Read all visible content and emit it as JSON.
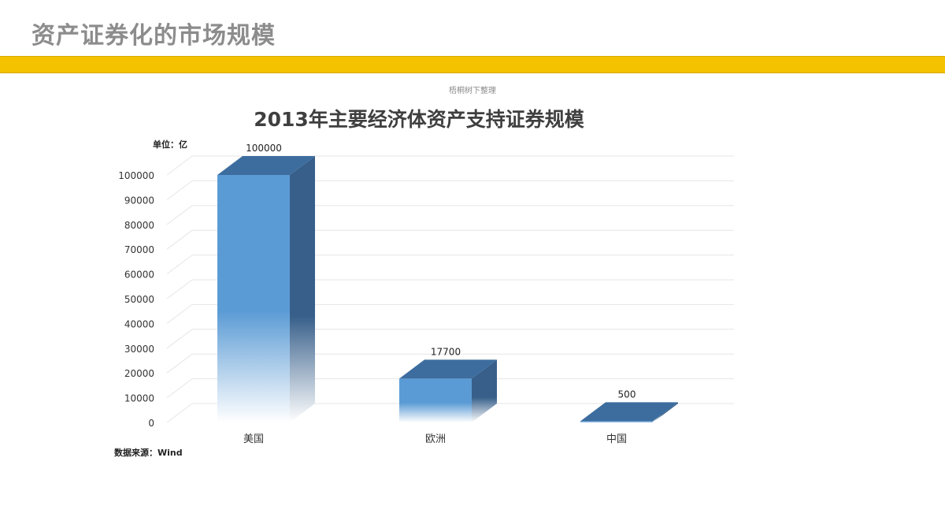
{
  "slide": {
    "title": "资产证券化的市场规模",
    "watermark": "梧桐树下整理",
    "accent_color": "#f5c200"
  },
  "chart_data": {
    "type": "bar",
    "style": "3d-column",
    "title": "2013年主要经济体资产支持证券规模",
    "unit_label": "单位：亿",
    "source": "数据来源：Wind",
    "categories": [
      "美国",
      "欧洲",
      "中国"
    ],
    "values": [
      100000,
      17700,
      500
    ],
    "data_labels": [
      "100000",
      "17700",
      "500"
    ],
    "yticks": [
      "0",
      "10000",
      "20000",
      "30000",
      "40000",
      "50000",
      "60000",
      "70000",
      "80000",
      "90000",
      "100000"
    ],
    "ylim": [
      0,
      100000
    ],
    "grid": true,
    "legend": "none",
    "bar_color": "#5b9bd5",
    "bar_side_color": "#375f8a",
    "bar_top_color": "#3d6d9f"
  }
}
